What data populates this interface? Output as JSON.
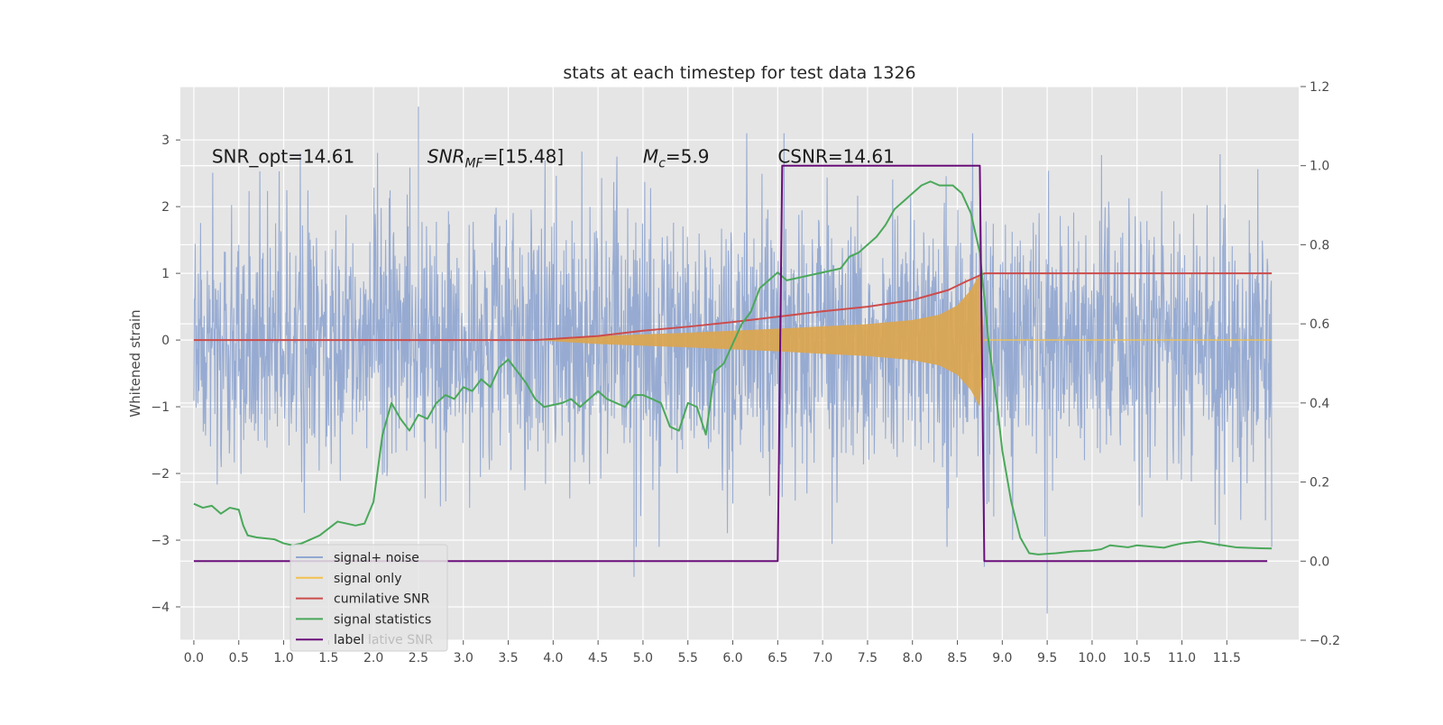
{
  "chart_data": {
    "type": "line",
    "title": "stats at each timestep for test data 1326",
    "ylabel": "Whitened strain",
    "x_ticks": [
      "0.0",
      "0.5",
      "1.0",
      "1.5",
      "2.0",
      "2.5",
      "3.0",
      "3.5",
      "4.0",
      "4.5",
      "5.0",
      "5.5",
      "6.0",
      "6.5",
      "7.0",
      "7.5",
      "8.0",
      "8.5",
      "9.0",
      "9.5",
      "10.0",
      "10.5",
      "11.0",
      "11.5"
    ],
    "xlim": [
      -0.15,
      12.3
    ],
    "ylim_left": [
      -4.5,
      3.8
    ],
    "ylim_right": [
      -0.2,
      1.2
    ],
    "y_ticks_left": [
      "−4",
      "−3",
      "−2",
      "−1",
      "0",
      "1",
      "2",
      "3"
    ],
    "y_ticks_right": [
      "−0.2",
      "0.0",
      "0.2",
      "0.4",
      "0.6",
      "0.8",
      "1.0",
      "1.2"
    ],
    "annotations": [
      {
        "text": "SNR_opt=14.61",
        "x": 0.2,
        "y": 2.75
      },
      {
        "text": "SNR_MF=[15.48]",
        "x": 2.6,
        "y": 2.75
      },
      {
        "text": "M_c=5.9",
        "x": 5.0,
        "y": 2.75
      },
      {
        "text": "CSNR=14.61",
        "x": 6.5,
        "y": 2.75
      }
    ],
    "legend": {
      "placement": "lower-left",
      "entries": [
        {
          "label": "signal+ noise",
          "color": "#92a8d1"
        },
        {
          "label": "signal only",
          "color": "#f2c14e"
        },
        {
          "label": "cumilative SNR",
          "color": "#cc4c4c"
        },
        {
          "label": "signal statistics",
          "color": "#4aa85a"
        },
        {
          "label": "label",
          "color": "#6a0f7a"
        }
      ],
      "ghost_text": "lative SNR"
    },
    "series": [
      {
        "name": "signal+ noise",
        "axis": "left",
        "kind": "noise",
        "x_range": [
          0.0,
          12.0
        ],
        "typical_amplitude": 1.5,
        "extremes": [
          [
            4.9,
            -3.55
          ],
          [
            9.5,
            -4.1
          ],
          [
            2.5,
            3.5
          ],
          [
            8.8,
            -3.4
          ],
          [
            5.95,
            1.0
          ]
        ]
      },
      {
        "name": "signal only",
        "axis": "left",
        "kind": "chirp",
        "x_start": 3.8,
        "x_end": 8.8,
        "envelope": [
          [
            3.8,
            0.0
          ],
          [
            4.5,
            0.06
          ],
          [
            5.5,
            0.11
          ],
          [
            6.5,
            0.17
          ],
          [
            7.5,
            0.24
          ],
          [
            8.0,
            0.3
          ],
          [
            8.3,
            0.38
          ],
          [
            8.5,
            0.52
          ],
          [
            8.65,
            0.75
          ],
          [
            8.75,
            1.0
          ],
          [
            8.8,
            0.0
          ]
        ]
      },
      {
        "name": "cumilative SNR",
        "axis": "left",
        "points": [
          [
            0.0,
            0.0
          ],
          [
            3.8,
            0.0
          ],
          [
            4.5,
            0.06
          ],
          [
            5.0,
            0.14
          ],
          [
            5.5,
            0.2
          ],
          [
            6.0,
            0.27
          ],
          [
            6.5,
            0.35
          ],
          [
            7.0,
            0.43
          ],
          [
            7.5,
            0.5
          ],
          [
            8.0,
            0.6
          ],
          [
            8.4,
            0.75
          ],
          [
            8.6,
            0.88
          ],
          [
            8.8,
            1.0
          ],
          [
            12.0,
            1.0
          ]
        ]
      },
      {
        "name": "signal statistics",
        "axis": "right",
        "points": [
          [
            0.0,
            0.145
          ],
          [
            0.1,
            0.135
          ],
          [
            0.2,
            0.14
          ],
          [
            0.3,
            0.12
          ],
          [
            0.4,
            0.135
          ],
          [
            0.5,
            0.13
          ],
          [
            0.55,
            0.09
          ],
          [
            0.6,
            0.065
          ],
          [
            0.7,
            0.06
          ],
          [
            0.9,
            0.055
          ],
          [
            1.0,
            0.045
          ],
          [
            1.1,
            0.04
          ],
          [
            1.2,
            0.045
          ],
          [
            1.4,
            0.065
          ],
          [
            1.6,
            0.1
          ],
          [
            1.8,
            0.09
          ],
          [
            1.9,
            0.095
          ],
          [
            2.0,
            0.15
          ],
          [
            2.1,
            0.32
          ],
          [
            2.2,
            0.4
          ],
          [
            2.3,
            0.36
          ],
          [
            2.4,
            0.33
          ],
          [
            2.5,
            0.37
          ],
          [
            2.6,
            0.36
          ],
          [
            2.7,
            0.4
          ],
          [
            2.8,
            0.42
          ],
          [
            2.9,
            0.41
          ],
          [
            3.0,
            0.44
          ],
          [
            3.1,
            0.43
          ],
          [
            3.2,
            0.46
          ],
          [
            3.3,
            0.44
          ],
          [
            3.4,
            0.49
          ],
          [
            3.5,
            0.51
          ],
          [
            3.6,
            0.48
          ],
          [
            3.7,
            0.45
          ],
          [
            3.8,
            0.41
          ],
          [
            3.9,
            0.39
          ],
          [
            4.1,
            0.4
          ],
          [
            4.2,
            0.41
          ],
          [
            4.3,
            0.39
          ],
          [
            4.5,
            0.43
          ],
          [
            4.6,
            0.41
          ],
          [
            4.8,
            0.39
          ],
          [
            4.9,
            0.42
          ],
          [
            5.0,
            0.42
          ],
          [
            5.1,
            0.41
          ],
          [
            5.2,
            0.4
          ],
          [
            5.3,
            0.34
          ],
          [
            5.4,
            0.33
          ],
          [
            5.5,
            0.4
          ],
          [
            5.6,
            0.39
          ],
          [
            5.7,
            0.32
          ],
          [
            5.8,
            0.48
          ],
          [
            5.9,
            0.5
          ],
          [
            6.0,
            0.55
          ],
          [
            6.1,
            0.6
          ],
          [
            6.2,
            0.63
          ],
          [
            6.3,
            0.69
          ],
          [
            6.4,
            0.71
          ],
          [
            6.5,
            0.73
          ],
          [
            6.6,
            0.71
          ],
          [
            6.8,
            0.72
          ],
          [
            7.0,
            0.73
          ],
          [
            7.2,
            0.74
          ],
          [
            7.3,
            0.77
          ],
          [
            7.4,
            0.78
          ],
          [
            7.5,
            0.8
          ],
          [
            7.6,
            0.82
          ],
          [
            7.7,
            0.85
          ],
          [
            7.8,
            0.89
          ],
          [
            7.9,
            0.91
          ],
          [
            8.0,
            0.93
          ],
          [
            8.1,
            0.95
          ],
          [
            8.2,
            0.96
          ],
          [
            8.3,
            0.95
          ],
          [
            8.45,
            0.95
          ],
          [
            8.55,
            0.93
          ],
          [
            8.65,
            0.88
          ],
          [
            8.75,
            0.78
          ],
          [
            8.85,
            0.55
          ],
          [
            8.95,
            0.38
          ],
          [
            9.0,
            0.28
          ],
          [
            9.1,
            0.15
          ],
          [
            9.2,
            0.06
          ],
          [
            9.3,
            0.02
          ],
          [
            9.4,
            0.017
          ],
          [
            9.6,
            0.02
          ],
          [
            9.8,
            0.025
          ],
          [
            10.0,
            0.027
          ],
          [
            10.1,
            0.03
          ],
          [
            10.2,
            0.04
          ],
          [
            10.4,
            0.035
          ],
          [
            10.5,
            0.04
          ],
          [
            10.6,
            0.038
          ],
          [
            10.8,
            0.034
          ],
          [
            10.9,
            0.04
          ],
          [
            11.0,
            0.045
          ],
          [
            11.2,
            0.05
          ],
          [
            11.4,
            0.042
          ],
          [
            11.6,
            0.035
          ],
          [
            11.8,
            0.033
          ],
          [
            12.0,
            0.032
          ]
        ]
      },
      {
        "name": "label",
        "axis": "right",
        "points": [
          [
            0.0,
            0.0
          ],
          [
            6.5,
            0.0
          ],
          [
            6.55,
            1.0
          ],
          [
            8.75,
            1.0
          ],
          [
            8.8,
            0.0
          ],
          [
            11.95,
            0.0
          ]
        ]
      }
    ],
    "colors": {
      "axes_background": "#e5e5e5",
      "grid": "#ffffff"
    },
    "grid": true
  }
}
